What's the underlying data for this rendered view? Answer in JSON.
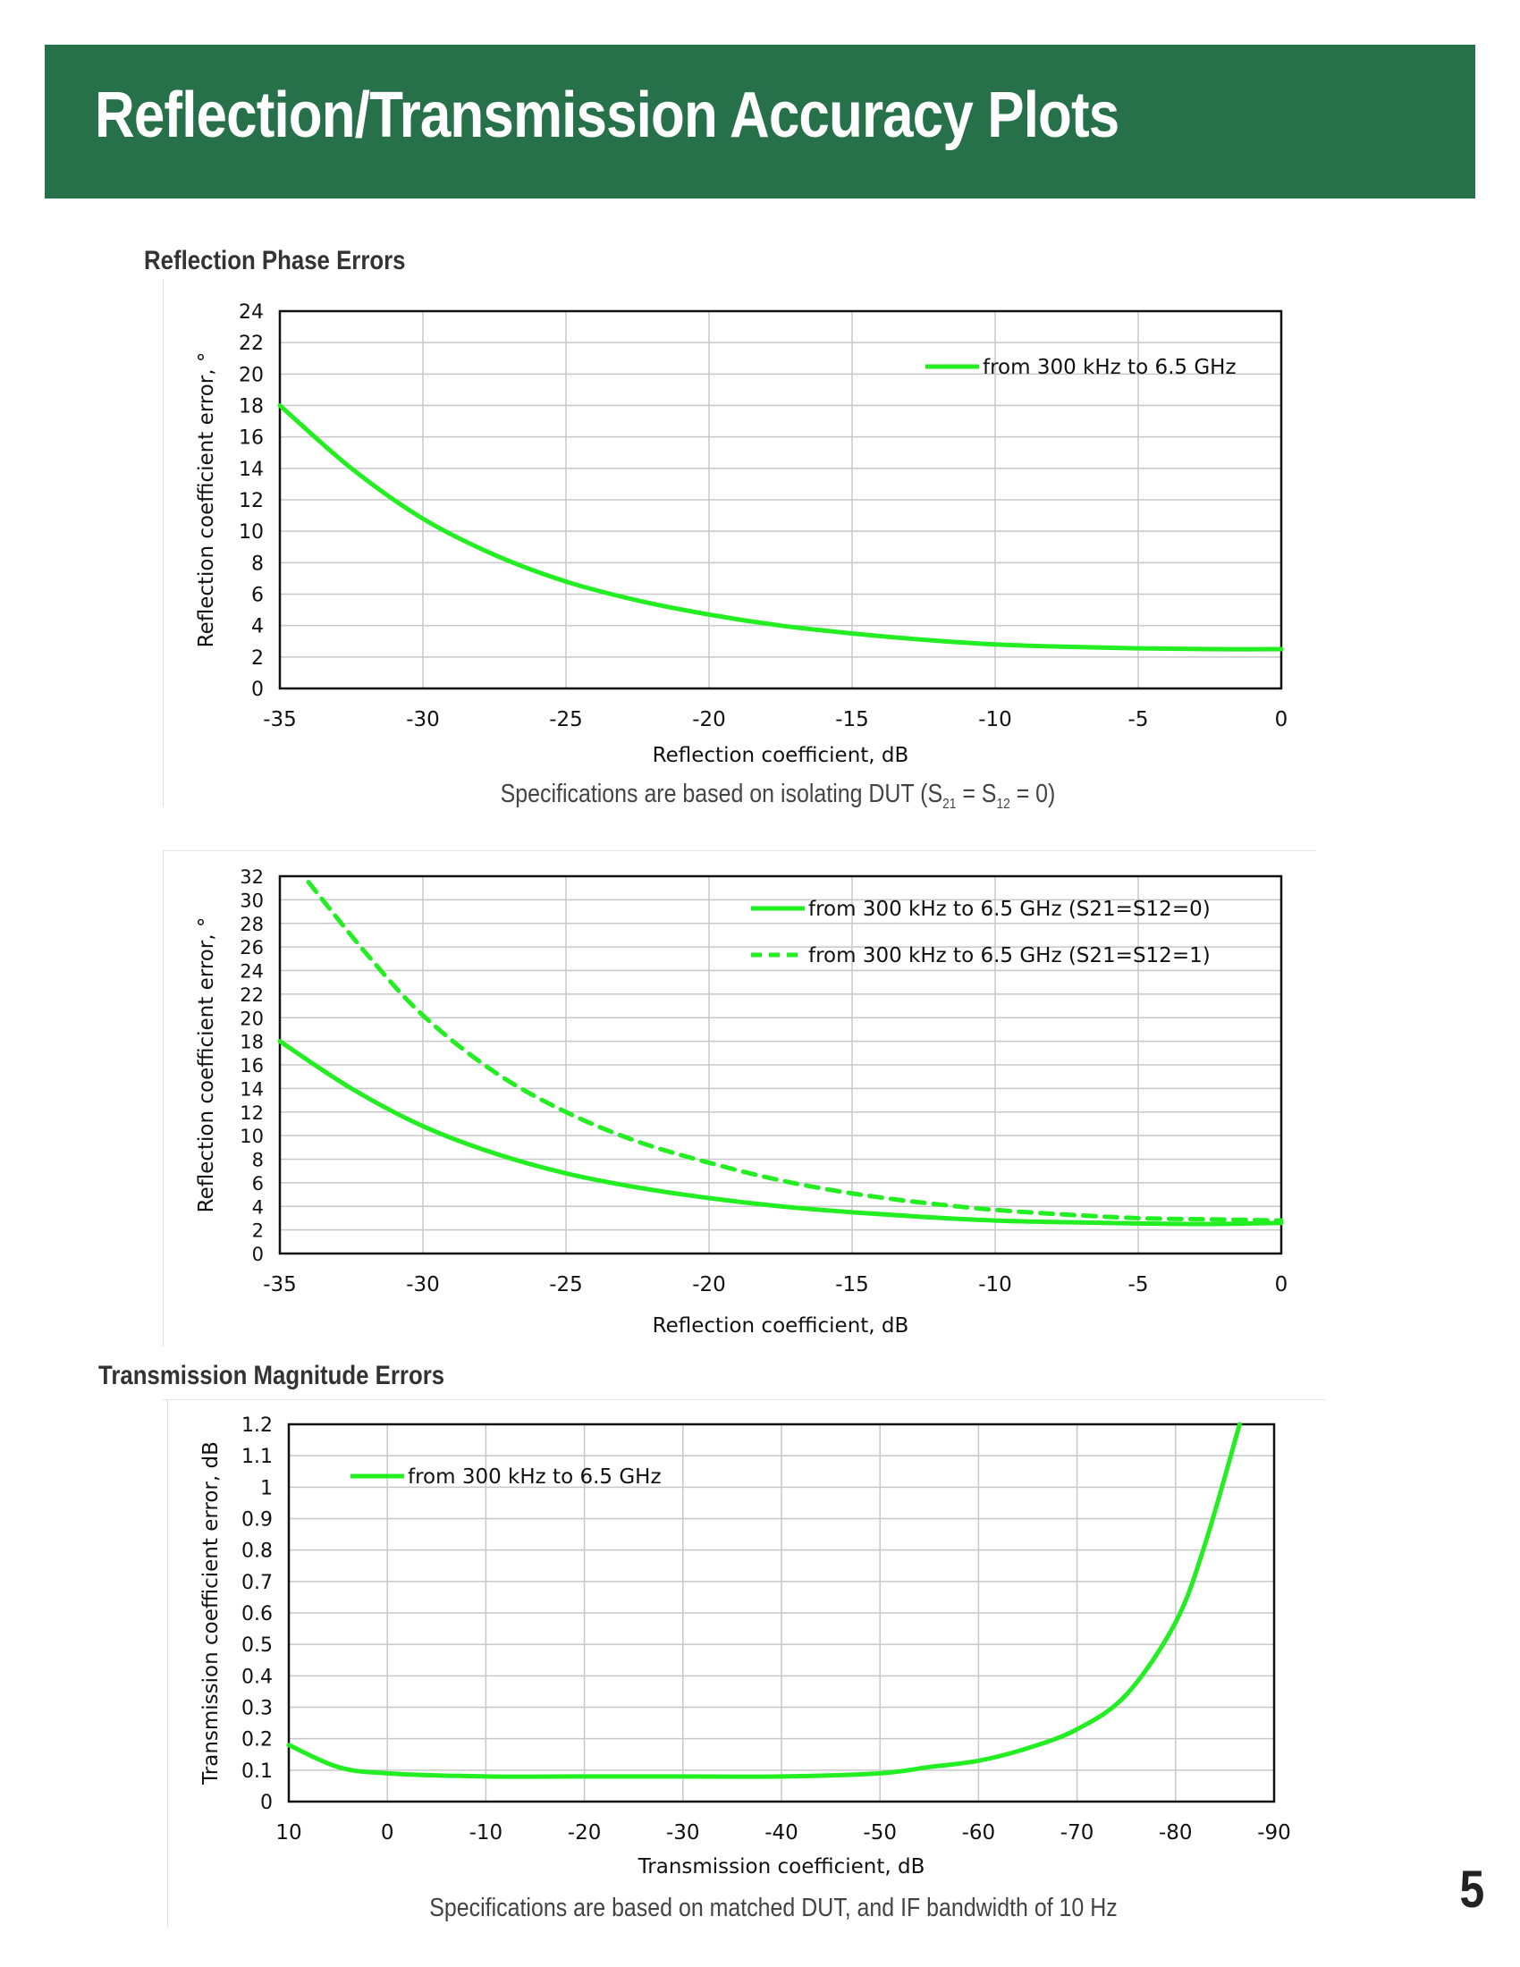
{
  "page": {
    "title": "Reflection/Transmission Accuracy Plots",
    "page_number": "5",
    "section1_title": "Reflection Phase Errors",
    "section2_title": "Transmission Magnitude Errors",
    "note1": {
      "prefix": "Specifications are based on isolating DUT (S",
      "sub1": "21",
      "mid": " = S",
      "sub2": "12",
      "suffix": " = 0)"
    },
    "note2": "Specifications are based on matched DUT, and IF bandwidth of 10 Hz"
  },
  "colors": {
    "banner": "#26704a",
    "series": "#22ee22",
    "grid": "#c8c8c8"
  },
  "chart_data": [
    {
      "type": "line",
      "title": "",
      "xlabel": "Reflection coefficient, dB",
      "ylabel": "Reflection coefficient error, °",
      "xlim": [
        -35,
        0
      ],
      "ylim": [
        0,
        24
      ],
      "xticks": [
        -35,
        -30,
        -25,
        -20,
        -15,
        -10,
        -5,
        0
      ],
      "yticks": [
        0,
        2,
        4,
        6,
        8,
        10,
        12,
        14,
        16,
        18,
        20,
        22,
        24
      ],
      "grid": true,
      "legend": "top-right",
      "series": [
        {
          "name": "from 300 kHz to 6.5 GHz",
          "style": "solid",
          "x": [
            -35,
            -32.5,
            -30,
            -27.5,
            -25,
            -22.5,
            -20,
            -17.5,
            -15,
            -12.5,
            -10,
            -7.5,
            -5,
            -2.5,
            0
          ],
          "y": [
            18,
            14,
            10.8,
            8.5,
            6.8,
            5.6,
            4.7,
            4.0,
            3.5,
            3.1,
            2.8,
            2.65,
            2.55,
            2.5,
            2.5
          ]
        }
      ]
    },
    {
      "type": "line",
      "title": "",
      "xlabel": "Reflection coefficient, dB",
      "ylabel": "Reflection coefficient error, °",
      "xlim": [
        -35,
        0
      ],
      "ylim": [
        0,
        32
      ],
      "xticks": [
        -35,
        -30,
        -25,
        -20,
        -15,
        -10,
        -5,
        0
      ],
      "yticks": [
        0,
        2,
        4,
        6,
        8,
        10,
        12,
        14,
        16,
        18,
        20,
        22,
        24,
        26,
        28,
        30,
        32
      ],
      "grid": true,
      "legend": "top-right",
      "series": [
        {
          "name": "from 300 kHz to 6.5 GHz (S21=S12=0)",
          "style": "solid",
          "x": [
            -35,
            -32.5,
            -30,
            -27.5,
            -25,
            -22.5,
            -20,
            -17.5,
            -15,
            -12.5,
            -10,
            -7.5,
            -5,
            -2.5,
            0
          ],
          "y": [
            18,
            14,
            10.8,
            8.5,
            6.8,
            5.6,
            4.7,
            4.0,
            3.5,
            3.1,
            2.8,
            2.65,
            2.55,
            2.5,
            2.6
          ]
        },
        {
          "name": "from 300 kHz to 6.5 GHz (S21=S12=1)",
          "style": "dashed",
          "x": [
            -34,
            -32,
            -30,
            -27.5,
            -25,
            -22.5,
            -20,
            -17.5,
            -15,
            -12.5,
            -10,
            -7.5,
            -5,
            -2.5,
            0
          ],
          "y": [
            31.5,
            25.5,
            20.2,
            15.4,
            12,
            9.5,
            7.7,
            6.2,
            5.1,
            4.3,
            3.7,
            3.3,
            3.0,
            2.9,
            2.8
          ]
        }
      ]
    },
    {
      "type": "line",
      "title": "",
      "xlabel": "Transmission coefficient, dB",
      "ylabel": "Transmission coefficient error, dB",
      "xlim": [
        10,
        -90
      ],
      "ylim": [
        0,
        1.2
      ],
      "xticks": [
        10,
        0,
        -10,
        -20,
        -30,
        -40,
        -50,
        -60,
        -70,
        -80,
        -90
      ],
      "yticks": [
        0,
        0.1,
        0.2,
        0.3,
        0.4,
        0.5,
        0.6,
        0.7,
        0.8,
        0.9,
        1,
        1.1,
        1.2
      ],
      "grid": true,
      "legend": "top-left",
      "series": [
        {
          "name": "from 300 kHz to 6.5 GHz",
          "style": "solid",
          "x": [
            10,
            5,
            0,
            -10,
            -20,
            -30,
            -40,
            -50,
            -55,
            -60,
            -65,
            -70,
            -75,
            -80,
            -83,
            -86.5
          ],
          "y": [
            0.18,
            0.11,
            0.09,
            0.08,
            0.08,
            0.08,
            0.08,
            0.09,
            0.11,
            0.13,
            0.17,
            0.23,
            0.34,
            0.57,
            0.82,
            1.2
          ]
        }
      ]
    }
  ]
}
